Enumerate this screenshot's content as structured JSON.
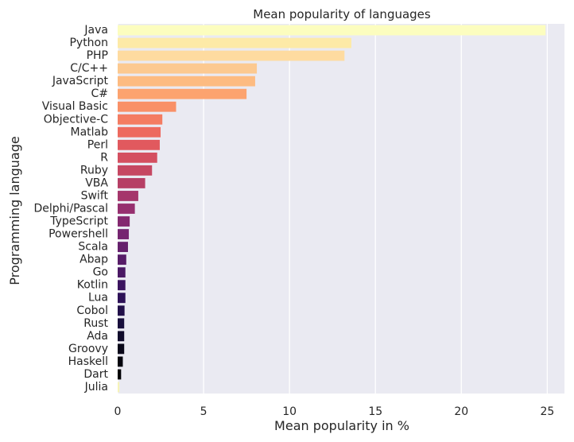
{
  "chart_data": {
    "type": "bar",
    "orientation": "horizontal",
    "title": "Mean popularity of languages",
    "xlabel": "Mean popularity in %",
    "ylabel": "Programming language",
    "xlim": [
      0,
      26
    ],
    "xticks": [
      0,
      5,
      10,
      15,
      20,
      25
    ],
    "grid": true,
    "categories": [
      "Java",
      "Python",
      "PHP",
      "C/C++",
      "JavaScript",
      "C#",
      "Visual Basic",
      "Objective-C",
      "Matlab",
      "Perl",
      "R",
      "Ruby",
      "VBA",
      "Swift",
      "Delphi/Pascal",
      "TypeScript",
      "Powershell",
      "Scala",
      "Abap",
      "Go",
      "Kotlin",
      "Lua",
      "Cobol",
      "Rust",
      "Ada",
      "Groovy",
      "Haskell",
      "Dart",
      "Julia"
    ],
    "values": [
      24.9,
      13.6,
      13.2,
      8.1,
      8.0,
      7.5,
      3.4,
      2.6,
      2.5,
      2.45,
      2.3,
      2.0,
      1.6,
      1.2,
      1.0,
      0.7,
      0.65,
      0.6,
      0.5,
      0.45,
      0.45,
      0.45,
      0.4,
      0.38,
      0.38,
      0.38,
      0.3,
      0.2,
      0.1
    ],
    "colors": [
      "#fcfdbf",
      "#fdeaa7",
      "#fedba0",
      "#fcc990",
      "#fdbb81",
      "#fca36f",
      "#f99067",
      "#f47c62",
      "#ed6a5f",
      "#e1595e",
      "#d44f60",
      "#c64762",
      "#b63f65",
      "#a5366b",
      "#962f6f",
      "#84286f",
      "#752570",
      "#65206c",
      "#571c68",
      "#4a1864",
      "#3b145f",
      "#2d1157",
      "#210f49",
      "#180e3c",
      "#100b2b",
      "#090719",
      "#04030d",
      "#000004",
      "#f6f3b8"
    ]
  }
}
